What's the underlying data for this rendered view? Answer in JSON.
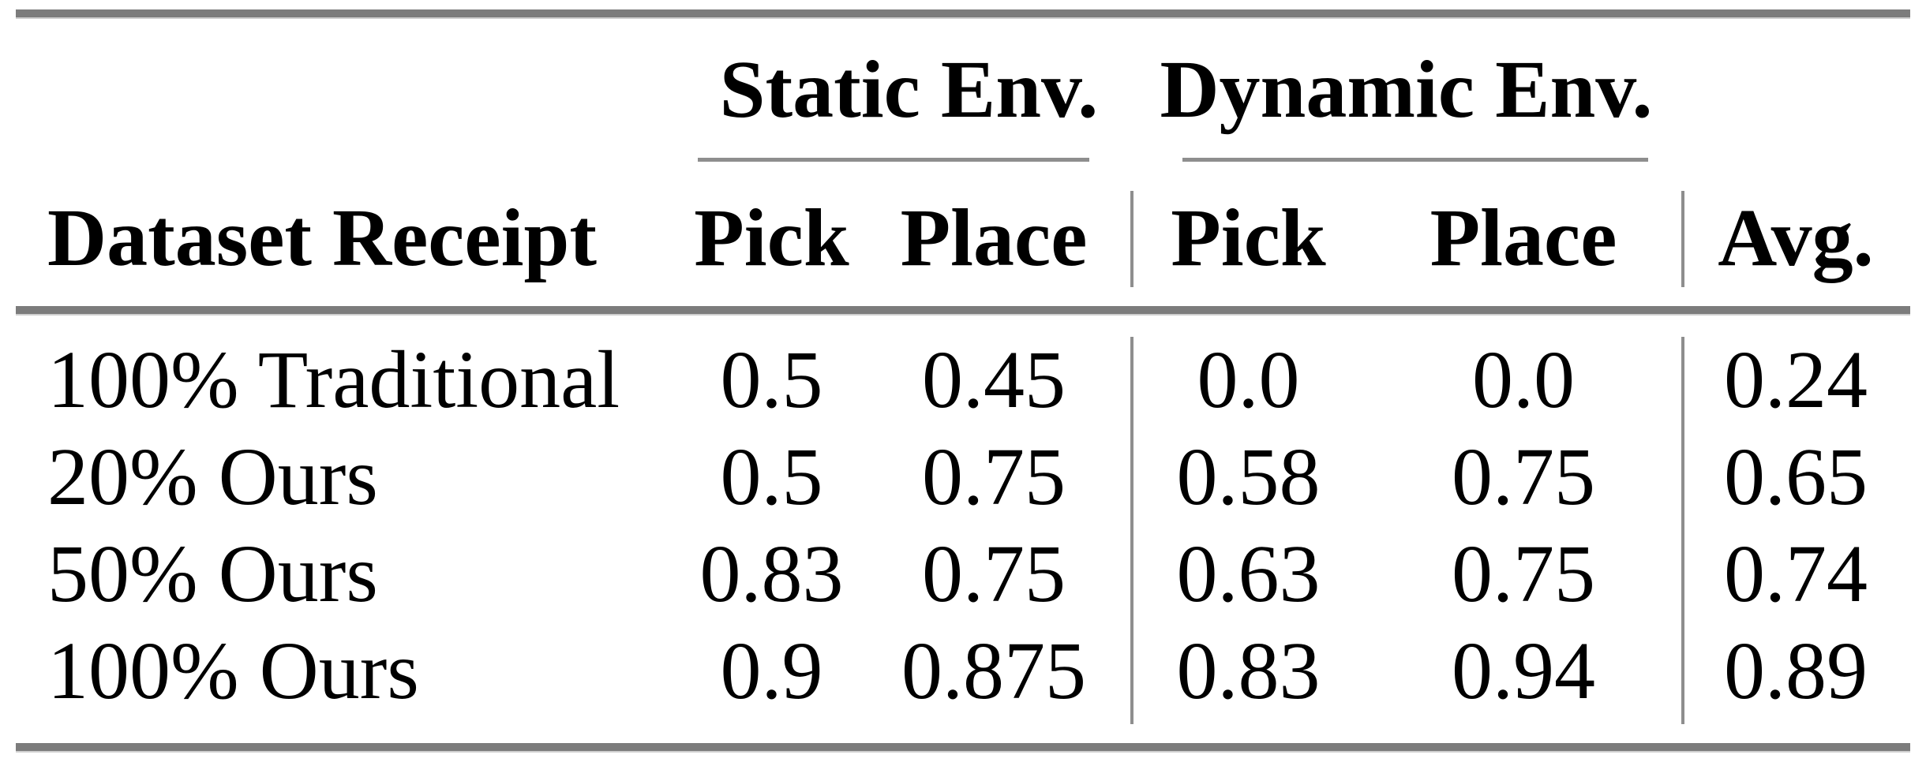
{
  "header": {
    "row_label": "Dataset Receipt",
    "groups": {
      "static": {
        "label": "Static Env.",
        "pick": "Pick",
        "place": "Place"
      },
      "dynamic": {
        "label": "Dynamic Env.",
        "pick": "Pick",
        "place": "Place"
      }
    },
    "avg_label": "Avg."
  },
  "rows": [
    {
      "label": "100% Traditional",
      "values": [
        "0.5",
        "0.45",
        "0.0",
        "0.0",
        "0.24"
      ]
    },
    {
      "label": "20% Ours",
      "values": [
        "0.5",
        "0.75",
        "0.58",
        "0.75",
        "0.65"
      ]
    },
    {
      "label": "50% Ours",
      "values": [
        "0.83",
        "0.75",
        "0.63",
        "0.75",
        "0.74"
      ]
    },
    {
      "label": "100% Ours",
      "values": [
        "0.9",
        "0.875",
        "0.83",
        "0.94",
        "0.89"
      ]
    }
  ],
  "colors": {
    "background": "#ffffff",
    "text": "#000000",
    "thick_rule": "#7c7c7c",
    "thin_rule": "#8e8e8e"
  }
}
